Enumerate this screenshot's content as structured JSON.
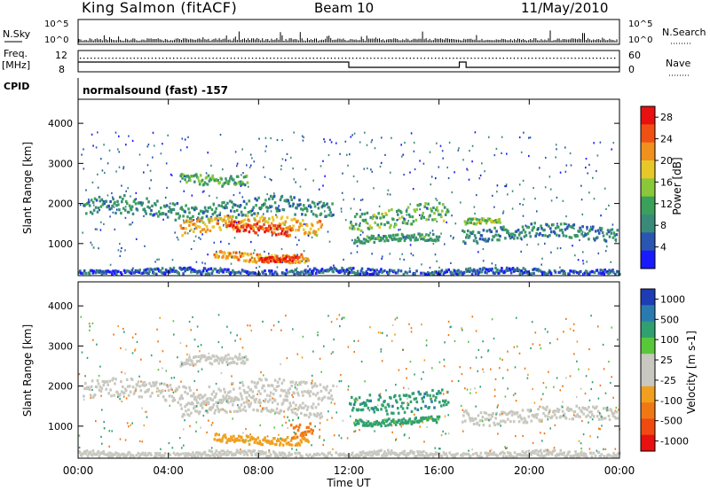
{
  "header": {
    "station": "King Salmon (fitACF)",
    "beam": "Beam 10",
    "date": "11/May/2010"
  },
  "status": {
    "nsky_label": "N.Sky",
    "nsearch_label": "N.Search",
    "freq_label_1": "Freq.",
    "freq_label_2": "[MHz]",
    "nave_label": "Nave",
    "cpid_label": "CPID",
    "noise_ticks": [
      "10^5",
      "10^0"
    ],
    "freq_ticks": [
      "12",
      "8"
    ],
    "nave_ticks": [
      "60",
      "0"
    ],
    "cpid_text": "normalsound (fast) -157"
  },
  "colors": {
    "power": [
      "#1a1aff",
      "#2a55b0",
      "#3a8a7a",
      "#3aa05a",
      "#8ac83a",
      "#e8c828",
      "#f0901e",
      "#f05014",
      "#e81010"
    ],
    "velocity": [
      "#1e3cb4",
      "#2a7ab0",
      "#30a070",
      "#58c83a",
      "#c8c8c0",
      "#c8c8c0",
      "#f0a01e",
      "#f07814",
      "#f04a10",
      "#e81010"
    ]
  },
  "chart_data": [
    {
      "type": "heatmap",
      "name": "power",
      "xlabel": "",
      "ylabel": "Slant Range [km]",
      "xlim": [
        "00:00",
        "24:00"
      ],
      "ylim": [
        200,
        4600
      ],
      "yticks": [
        1000,
        2000,
        3000,
        4000
      ],
      "colorbar": {
        "label": "Power [dB]",
        "ticks": [
          4,
          8,
          12,
          16,
          20,
          24,
          28
        ],
        "range": [
          0,
          30
        ]
      },
      "regions": [
        {
          "t0": 0.2,
          "t1": 11.3,
          "r_center": 1900,
          "r_width": 320,
          "value": 9
        },
        {
          "t0": 4.5,
          "t1": 10.8,
          "r_center": 1500,
          "r_width": 260,
          "value": 20
        },
        {
          "t0": 6.5,
          "t1": 9.5,
          "r_center": 1400,
          "r_width": 180,
          "value": 26
        },
        {
          "t0": 6.0,
          "t1": 10.2,
          "r_center": 700,
          "r_width": 150,
          "value": 21
        },
        {
          "t0": 8.0,
          "t1": 9.8,
          "r_center": 650,
          "r_width": 90,
          "value": 28
        },
        {
          "t0": 4.5,
          "t1": 7.5,
          "r_center": 2650,
          "r_width": 180,
          "value": 12
        },
        {
          "t0": 12.0,
          "t1": 16.4,
          "r_center": 1700,
          "r_width": 350,
          "value": 13
        },
        {
          "t0": 12.2,
          "t1": 16.0,
          "r_center": 1150,
          "r_width": 120,
          "value": 10
        },
        {
          "t0": 17.0,
          "t1": 23.9,
          "r_center": 1300,
          "r_width": 250,
          "value": 8
        },
        {
          "t0": 17.1,
          "t1": 18.7,
          "r_center": 1600,
          "r_width": 100,
          "value": 14
        },
        {
          "t0": 0.0,
          "t1": 24.0,
          "r_center": 320,
          "r_width": 110,
          "value": 5
        }
      ]
    },
    {
      "type": "heatmap",
      "name": "velocity",
      "xlabel": "Time UT",
      "ylabel": "Slant Range [km]",
      "xlim": [
        "00:00",
        "24:00"
      ],
      "ylim": [
        200,
        4600
      ],
      "yticks": [
        1000,
        2000,
        3000,
        4000
      ],
      "xticks": [
        "00:00",
        "04:00",
        "08:00",
        "12:00",
        "16:00",
        "20:00",
        "00:00"
      ],
      "colorbar": {
        "label": "Velocity [m s-1]",
        "ticks": [
          1000,
          500,
          100,
          25,
          -25,
          -100,
          -500,
          -1000
        ],
        "range": [
          -1200,
          1200
        ]
      },
      "regions": [
        {
          "t0": 0.2,
          "t1": 11.3,
          "r_center": 1900,
          "r_width": 320,
          "value": 0
        },
        {
          "t0": 4.5,
          "t1": 10.8,
          "r_center": 1500,
          "r_width": 260,
          "value": 5
        },
        {
          "t0": 4.5,
          "t1": 7.5,
          "r_center": 2650,
          "r_width": 180,
          "value": 0
        },
        {
          "t0": 6.0,
          "t1": 10.2,
          "r_center": 700,
          "r_width": 150,
          "value": -60
        },
        {
          "t0": 9.4,
          "t1": 10.4,
          "r_center": 900,
          "r_width": 250,
          "value": -350
        },
        {
          "t0": 12.0,
          "t1": 16.4,
          "r_center": 1700,
          "r_width": 350,
          "value": 400
        },
        {
          "t0": 12.2,
          "t1": 16.0,
          "r_center": 1150,
          "r_width": 120,
          "value": 150
        },
        {
          "t0": 17.0,
          "t1": 23.9,
          "r_center": 1300,
          "r_width": 250,
          "value": 0
        },
        {
          "t0": 0.0,
          "t1": 24.0,
          "r_center": 320,
          "r_width": 110,
          "value": 0
        }
      ]
    }
  ]
}
